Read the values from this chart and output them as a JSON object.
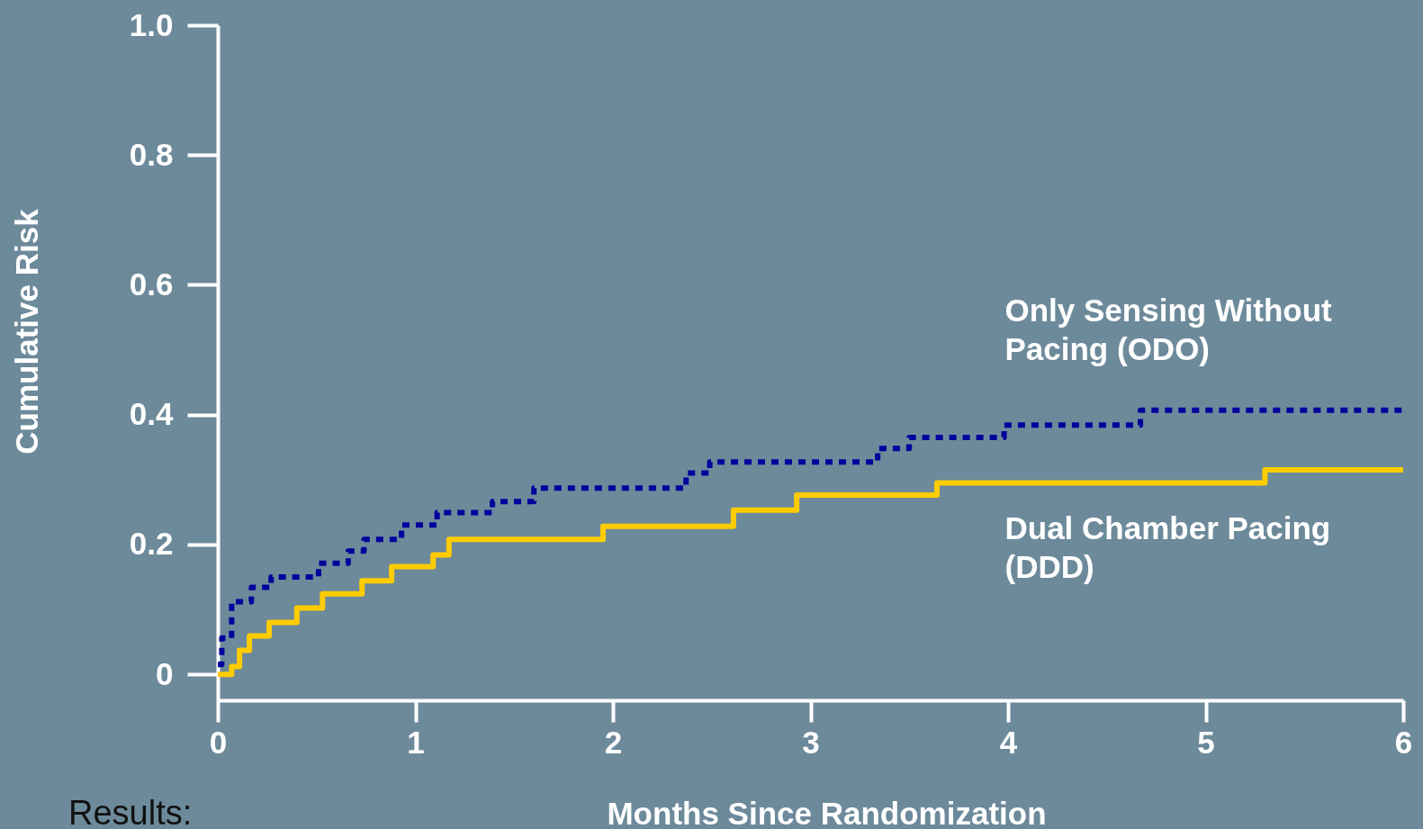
{
  "chart_data": {
    "type": "step",
    "xlabel": "Months Since Randomization",
    "ylabel": "Cumulative Risk",
    "xlim": [
      0,
      6
    ],
    "ylim": [
      -0.04,
      1
    ],
    "xticks": [
      0,
      1,
      2,
      3,
      4,
      5,
      6
    ],
    "yticks": [
      0,
      0.2,
      0.4,
      0.6,
      0.8,
      {
        "value": 1,
        "label": "1.0"
      }
    ],
    "series": [
      {
        "name": "Only Sensing Without Pacing (ODO)",
        "color": "#00009c",
        "line_style": "dotted",
        "x": [
          0,
          0.02,
          0.07,
          0.17,
          0.27,
          0.51,
          0.66,
          0.74,
          0.93,
          1.11,
          1.39,
          1.6,
          2.37,
          2.49,
          3.34,
          3.5,
          3.98,
          4.67,
          6
        ],
        "values": [
          0.015,
          0.056,
          0.112,
          0.134,
          0.15,
          0.171,
          0.19,
          0.208,
          0.23,
          0.249,
          0.266,
          0.287,
          0.31,
          0.327,
          0.348,
          0.365,
          0.384,
          0.407,
          0.407
        ]
      },
      {
        "name": "Dual Chamber Pacing (DDD)",
        "color": "#ffcc00",
        "line_style": "solid",
        "x": [
          0,
          0.07,
          0.11,
          0.16,
          0.26,
          0.4,
          0.53,
          0.73,
          0.88,
          1.09,
          1.17,
          1.95,
          2.61,
          2.93,
          3.64,
          5.3,
          6
        ],
        "values": [
          0,
          0.012,
          0.037,
          0.059,
          0.08,
          0.102,
          0.124,
          0.144,
          0.166,
          0.184,
          0.208,
          0.228,
          0.253,
          0.276,
          0.295,
          0.315,
          0.315
        ]
      }
    ],
    "annotations": [
      "Results:"
    ]
  }
}
